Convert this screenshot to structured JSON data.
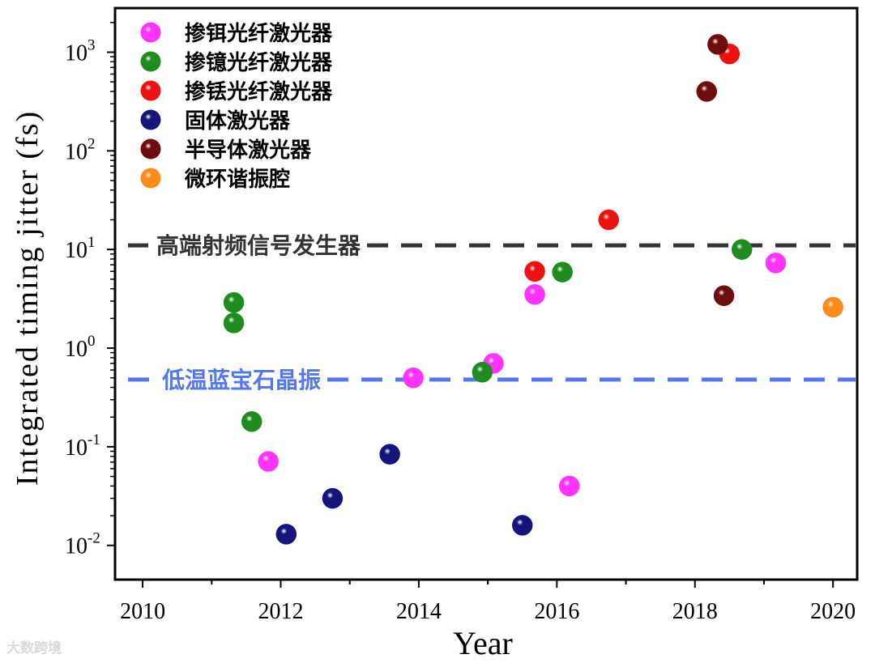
{
  "chart_data": {
    "type": "scatter",
    "xlabel": "Year",
    "ylabel": "Integrated timing jitter (fs)",
    "xlim": [
      2009.6,
      2020.35
    ],
    "ylim": [
      0.0045,
      2800
    ],
    "yscale": "log",
    "xticks": [
      2010,
      2012,
      2014,
      2016,
      2018,
      2020
    ],
    "yticks": [
      {
        "value": 0.01,
        "base": "10",
        "exp": "-2"
      },
      {
        "value": 0.1,
        "base": "10",
        "exp": "-1"
      },
      {
        "value": 1,
        "base": "10",
        "exp": "0"
      },
      {
        "value": 10,
        "base": "10",
        "exp": "1"
      },
      {
        "value": 100,
        "base": "10",
        "exp": "2"
      },
      {
        "value": 1000,
        "base": "10",
        "exp": "3"
      }
    ],
    "legend_position": "top-left",
    "grid": false,
    "series": [
      {
        "name": "掺铒光纤激光器",
        "color": "#ff33ff",
        "points": [
          {
            "x": 2011.82,
            "y": 0.071
          },
          {
            "x": 2013.92,
            "y": 0.5
          },
          {
            "x": 2015.08,
            "y": 0.7
          },
          {
            "x": 2015.68,
            "y": 3.5
          },
          {
            "x": 2016.18,
            "y": 0.04
          },
          {
            "x": 2019.17,
            "y": 7.3
          }
        ]
      },
      {
        "name": "掺镱光纤激光器",
        "color": "#1f8c1f",
        "points": [
          {
            "x": 2011.32,
            "y": 2.9
          },
          {
            "x": 2011.32,
            "y": 1.8
          },
          {
            "x": 2011.58,
            "y": 0.18
          },
          {
            "x": 2014.92,
            "y": 0.57
          },
          {
            "x": 2016.08,
            "y": 5.9
          },
          {
            "x": 2018.68,
            "y": 10
          }
        ]
      },
      {
        "name": "掺铥光纤激光器",
        "color": "#ee1111",
        "points": [
          {
            "x": 2015.68,
            "y": 6.0
          },
          {
            "x": 2016.75,
            "y": 20
          },
          {
            "x": 2018.5,
            "y": 960
          }
        ]
      },
      {
        "name": "固体激光器",
        "color": "#14147a",
        "points": [
          {
            "x": 2012.08,
            "y": 0.013
          },
          {
            "x": 2012.75,
            "y": 0.03
          },
          {
            "x": 2013.58,
            "y": 0.084
          },
          {
            "x": 2015.5,
            "y": 0.016
          }
        ]
      },
      {
        "name": "半导体激光器",
        "color": "#6e0d0d",
        "points": [
          {
            "x": 2018.17,
            "y": 400
          },
          {
            "x": 2018.33,
            "y": 1200
          },
          {
            "x": 2018.42,
            "y": 3.4
          }
        ]
      },
      {
        "name": "微环谐振腔",
        "color": "#ff8c1a",
        "points": [
          {
            "x": 2020.0,
            "y": 2.6
          }
        ]
      }
    ],
    "reference_lines": [
      {
        "label": "高端射频信号发生器",
        "y": 11,
        "color": "#333333",
        "text_color": "#333333"
      },
      {
        "label": "低温蓝宝石晶振",
        "y": 0.48,
        "color": "#5577ee",
        "text_color": "#5577ee"
      }
    ]
  },
  "watermark": "大数跨境"
}
